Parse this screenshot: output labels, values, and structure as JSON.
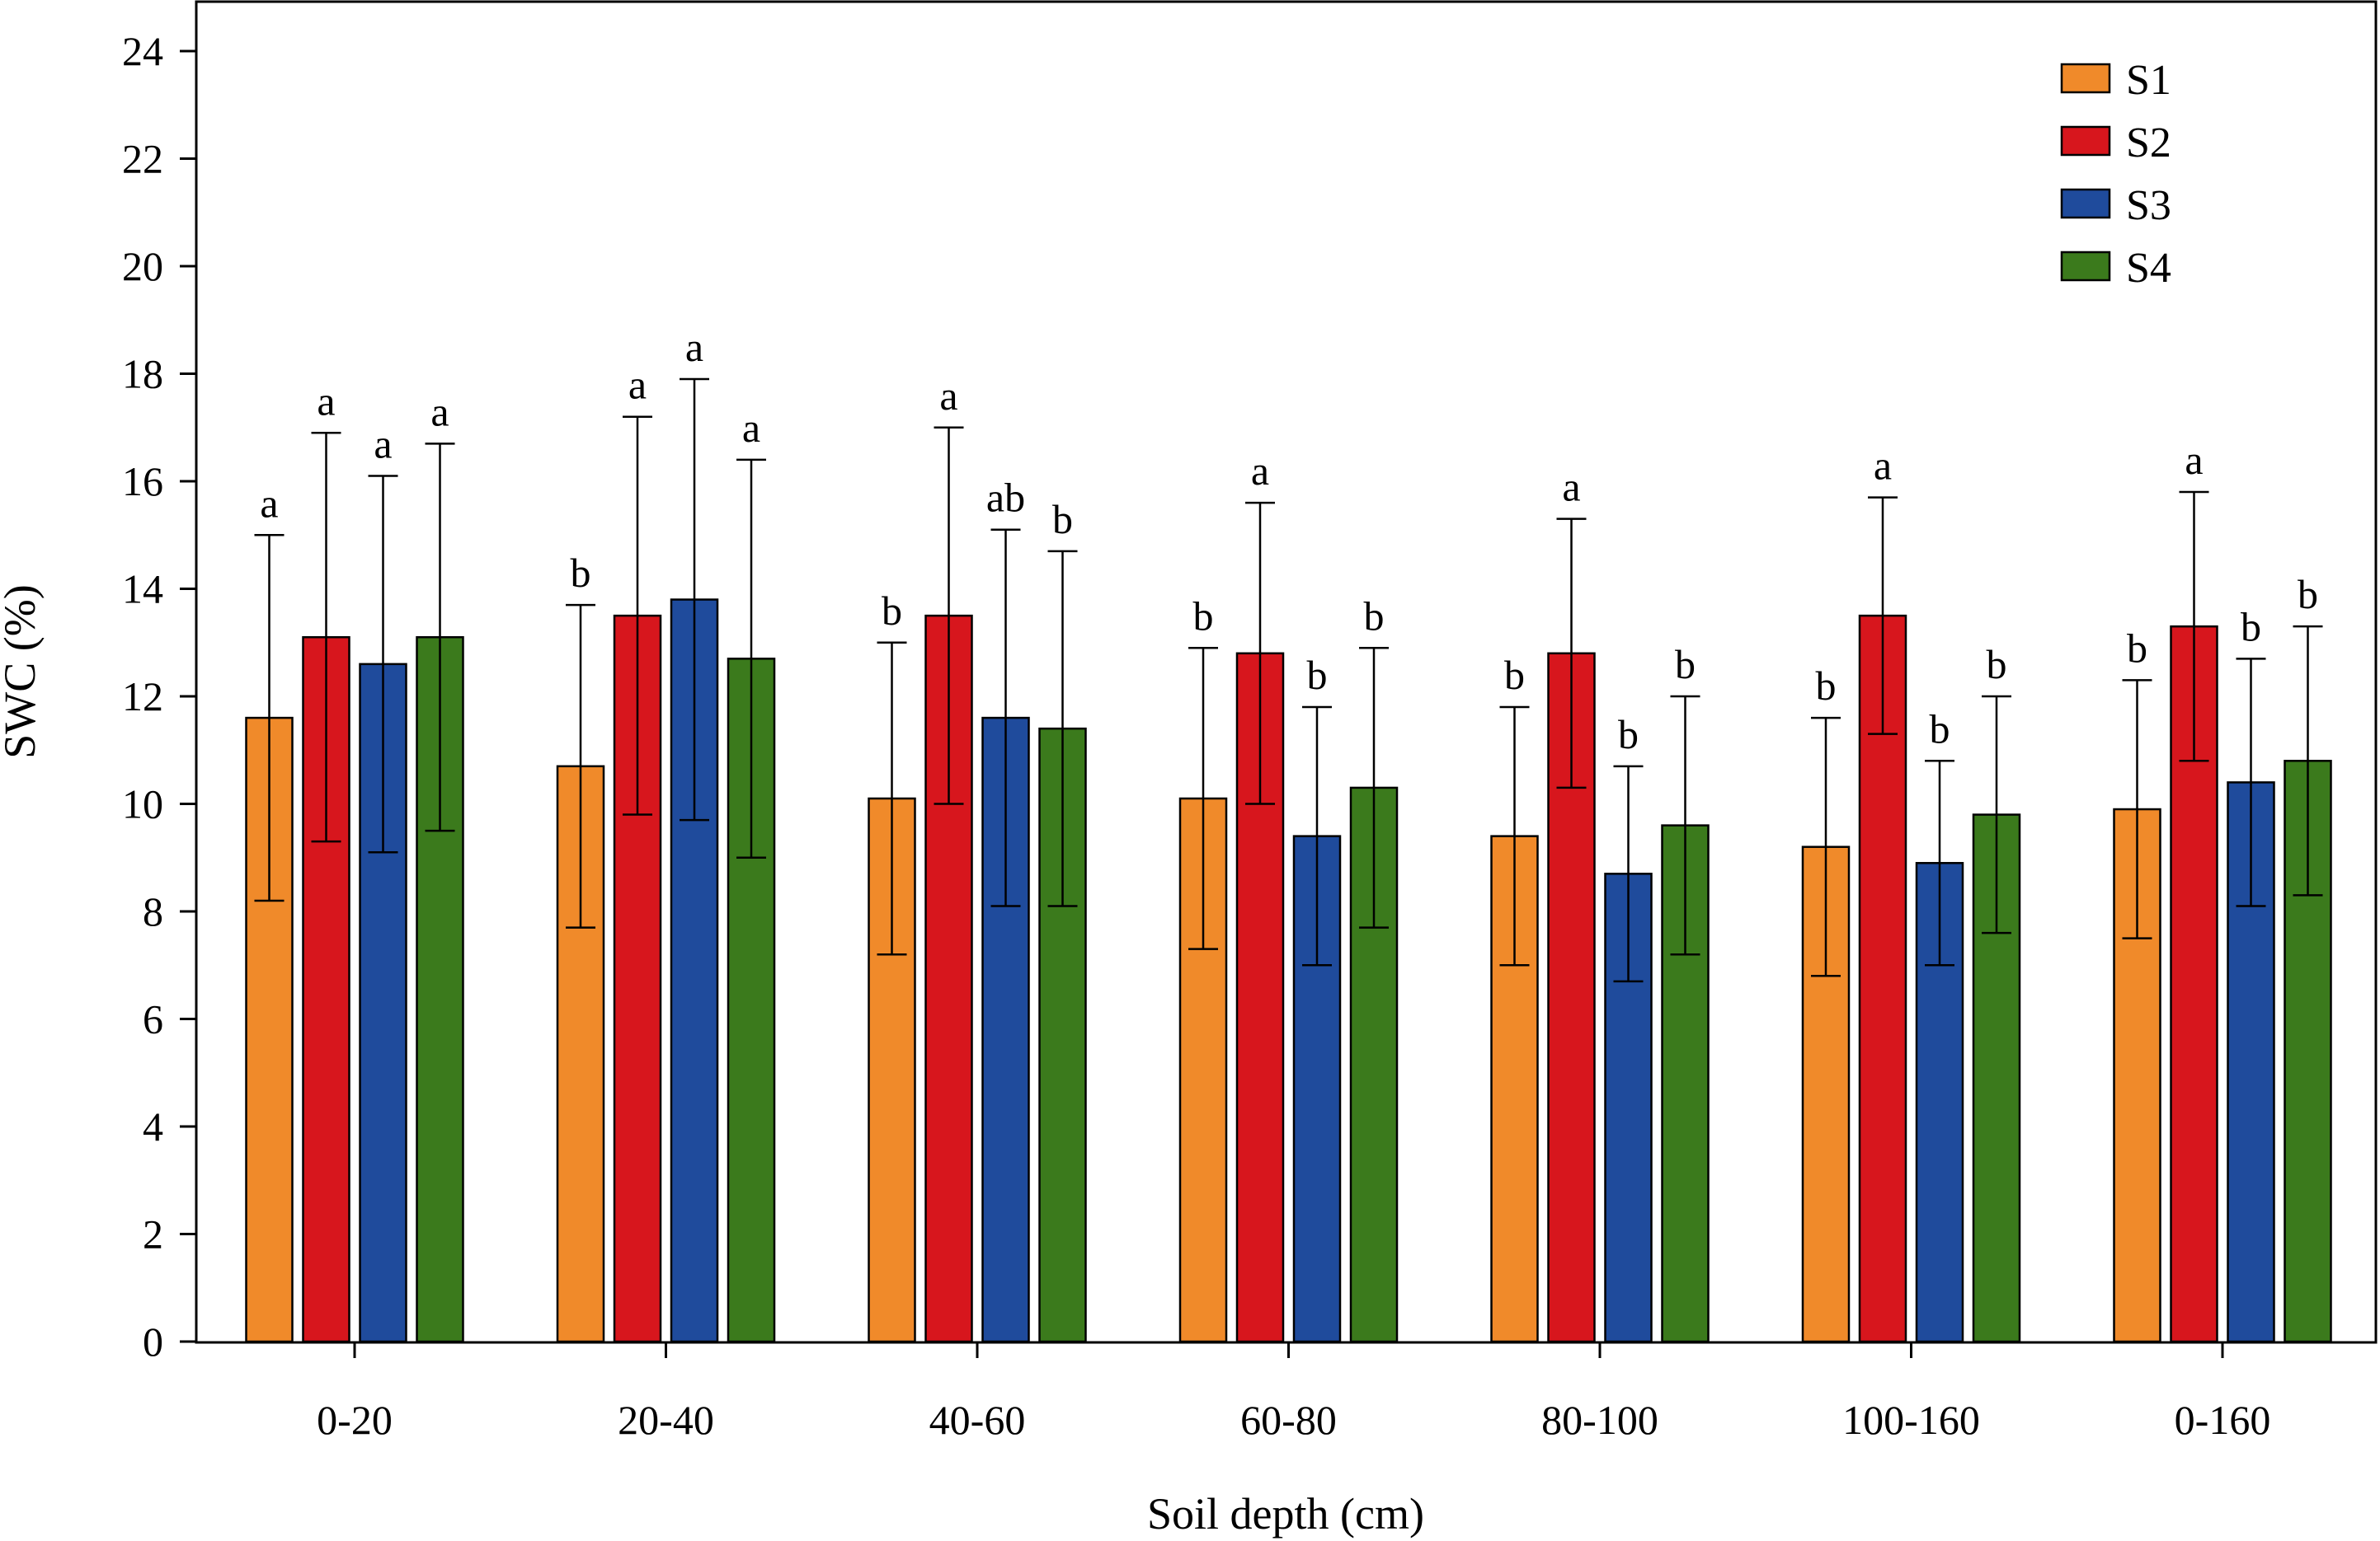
{
  "chart_data": {
    "type": "bar",
    "title": "",
    "xlabel": "Soil depth (cm)",
    "ylabel": "SWC (%)",
    "ylim": [
      0,
      25
    ],
    "yticks": [
      0,
      2,
      4,
      6,
      8,
      10,
      12,
      14,
      16,
      18,
      20,
      22,
      24
    ],
    "grid": false,
    "legend_position": "top-right",
    "categories": [
      "0-20",
      "20-40",
      "40-60",
      "60-80",
      "80-100",
      "100-160",
      "0-160"
    ],
    "series": [
      {
        "name": "S1",
        "color": "#f08a2a",
        "values": [
          11.6,
          10.7,
          10.1,
          10.1,
          9.4,
          9.2,
          9.9
        ],
        "errors": [
          3.4,
          3.0,
          2.9,
          2.8,
          2.4,
          2.4,
          2.4
        ],
        "letters": [
          "a",
          "b",
          "b",
          "b",
          "b",
          "b",
          "b"
        ]
      },
      {
        "name": "S2",
        "color": "#d7161d",
        "values": [
          13.1,
          13.5,
          13.5,
          12.8,
          12.8,
          13.5,
          13.3
        ],
        "errors": [
          3.8,
          3.7,
          3.5,
          2.8,
          2.5,
          2.2,
          2.5
        ],
        "letters": [
          "a",
          "a",
          "a",
          "a",
          "a",
          "a",
          "a"
        ]
      },
      {
        "name": "S3",
        "color": "#1f4b9c",
        "values": [
          12.6,
          13.8,
          11.6,
          9.4,
          8.7,
          8.9,
          10.4
        ],
        "errors": [
          3.5,
          4.1,
          3.5,
          2.4,
          2.0,
          1.9,
          2.3
        ],
        "letters": [
          "a",
          "a",
          "ab",
          "b",
          "b",
          "b",
          "b"
        ]
      },
      {
        "name": "S4",
        "color": "#3b7a1c",
        "values": [
          13.1,
          12.7,
          11.4,
          10.3,
          9.6,
          9.8,
          10.8
        ],
        "errors": [
          3.6,
          3.7,
          3.3,
          2.6,
          2.4,
          2.2,
          2.5
        ],
        "letters": [
          "a",
          "a",
          "b",
          "b",
          "b",
          "b",
          "b"
        ]
      }
    ]
  }
}
